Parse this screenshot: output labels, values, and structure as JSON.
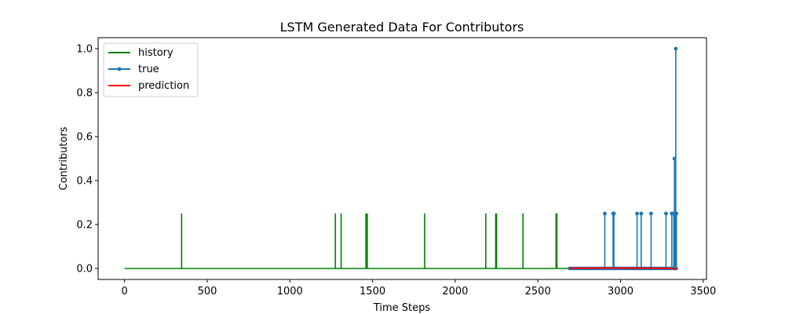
{
  "chart_data": {
    "type": "line",
    "title": "LSTM Generated Data For Contributors",
    "xlabel": "Time Steps",
    "ylabel": "Contributors",
    "xlim": [
      -160,
      3520
    ],
    "ylim": [
      -0.05,
      1.05
    ],
    "xticks": [
      0,
      500,
      1000,
      1500,
      2000,
      2500,
      3000,
      3500
    ],
    "yticks": [
      0.0,
      0.2,
      0.4,
      0.6,
      0.8,
      1.0
    ],
    "xtick_labels": [
      "0",
      "500",
      "1000",
      "1500",
      "2000",
      "2500",
      "3000",
      "3500"
    ],
    "ytick_labels": [
      "0.0",
      "0.2",
      "0.4",
      "0.6",
      "0.8",
      "1.0"
    ],
    "grid": false,
    "legend_position": "top-left",
    "series": [
      {
        "name": "history",
        "color": "#008000",
        "style": "line",
        "x_range": [
          0,
          2690
        ],
        "baseline": 0.0,
        "spikes": [
          {
            "x": 345,
            "y": 0.25
          },
          {
            "x": 1275,
            "y": 0.25
          },
          {
            "x": 1310,
            "y": 0.25
          },
          {
            "x": 1460,
            "y": 0.25
          },
          {
            "x": 1468,
            "y": 0.25
          },
          {
            "x": 1815,
            "y": 0.25
          },
          {
            "x": 2185,
            "y": 0.25
          },
          {
            "x": 2245,
            "y": 0.25
          },
          {
            "x": 2250,
            "y": 0.25
          },
          {
            "x": 2410,
            "y": 0.25
          },
          {
            "x": 2610,
            "y": 0.25
          },
          {
            "x": 2615,
            "y": 0.25
          }
        ]
      },
      {
        "name": "true",
        "color": "#1f77b4",
        "style": "line-marker",
        "x_range": [
          2690,
          3340
        ],
        "baseline": 0.0,
        "spikes": [
          {
            "x": 2905,
            "y": 0.25
          },
          {
            "x": 2955,
            "y": 0.25
          },
          {
            "x": 2960,
            "y": 0.25
          },
          {
            "x": 3100,
            "y": 0.25
          },
          {
            "x": 3125,
            "y": 0.25
          },
          {
            "x": 3185,
            "y": 0.25
          },
          {
            "x": 3275,
            "y": 0.25
          },
          {
            "x": 3310,
            "y": 0.25
          },
          {
            "x": 3322,
            "y": 0.25
          },
          {
            "x": 3326,
            "y": 0.5
          },
          {
            "x": 3330,
            "y": 0.25
          },
          {
            "x": 3334,
            "y": 1.0
          },
          {
            "x": 3338,
            "y": 0.25
          }
        ]
      },
      {
        "name": "prediction",
        "color": "#ff0000",
        "style": "line",
        "x_range": [
          2690,
          3340
        ],
        "values": [
          {
            "x": 2690,
            "y": 0.001
          },
          {
            "x": 3000,
            "y": 0.002
          },
          {
            "x": 3300,
            "y": 0.001
          },
          {
            "x": 3340,
            "y": -0.003
          }
        ]
      }
    ]
  }
}
